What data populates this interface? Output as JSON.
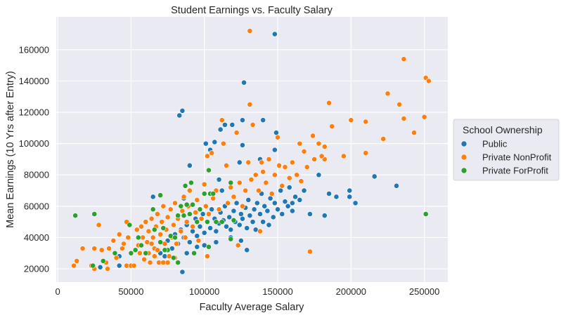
{
  "chart_data": {
    "type": "scatter",
    "title": "Student Earnings vs. Faculty Salary",
    "xlabel": "Faculty Average Salary",
    "ylabel": "Mean Earnings (10 Yrs after Entry)",
    "xlim": [
      -1000,
      266000
    ],
    "ylim": [
      11500,
      181000
    ],
    "xticks": [
      0,
      50000,
      100000,
      150000,
      200000,
      250000
    ],
    "yticks": [
      20000,
      40000,
      60000,
      80000,
      100000,
      120000,
      140000,
      160000
    ],
    "grid": true,
    "legend": {
      "title": "School Ownership",
      "placement": "right-outside"
    },
    "series": [
      {
        "name": "Public",
        "color": "#1f77b4",
        "points": [
          [
            148000,
            170000
          ],
          [
            127000,
            139000
          ],
          [
            85000,
            121000
          ],
          [
            83000,
            118000
          ],
          [
            140000,
            115000
          ],
          [
            126000,
            115000
          ],
          [
            111000,
            109000
          ],
          [
            114000,
            112000
          ],
          [
            119000,
            112000
          ],
          [
            101000,
            100000
          ],
          [
            107000,
            101000
          ],
          [
            104000,
            96000
          ],
          [
            126000,
            99000
          ],
          [
            149000,
            107000
          ],
          [
            148000,
            96000
          ],
          [
            90000,
            86000
          ],
          [
            124000,
            88000
          ],
          [
            138000,
            90000
          ],
          [
            85000,
            18000
          ],
          [
            129000,
            32000
          ],
          [
            203000,
            62000
          ],
          [
            216000,
            79000
          ],
          [
            231000,
            73000
          ],
          [
            199000,
            70000
          ],
          [
            199000,
            66000
          ],
          [
            190000,
            66000
          ],
          [
            185000,
            68000
          ],
          [
            182000,
            54000
          ],
          [
            178000,
            80000
          ],
          [
            172000,
            55000
          ],
          [
            160000,
            62000
          ],
          [
            75000,
            38000
          ],
          [
            78000,
            33000
          ],
          [
            80000,
            42000
          ],
          [
            82000,
            36000
          ],
          [
            84000,
            45000
          ],
          [
            86000,
            40000
          ],
          [
            88000,
            48000
          ],
          [
            90000,
            37000
          ],
          [
            92000,
            44000
          ],
          [
            94000,
            52000
          ],
          [
            95000,
            41000
          ],
          [
            97000,
            47000
          ],
          [
            99000,
            55000
          ],
          [
            100000,
            43000
          ],
          [
            102000,
            50000
          ],
          [
            104000,
            46000
          ],
          [
            105000,
            58000
          ],
          [
            107000,
            52000
          ],
          [
            108000,
            44000
          ],
          [
            110000,
            49000
          ],
          [
            111000,
            56000
          ],
          [
            113000,
            51000
          ],
          [
            114000,
            60000
          ],
          [
            115000,
            47000
          ],
          [
            117000,
            53000
          ],
          [
            118000,
            45000
          ],
          [
            120000,
            57000
          ],
          [
            121000,
            50000
          ],
          [
            122000,
            62000
          ],
          [
            124000,
            48000
          ],
          [
            125000,
            55000
          ],
          [
            126000,
            52000
          ],
          [
            128000,
            59000
          ],
          [
            129000,
            46000
          ],
          [
            130000,
            64000
          ],
          [
            131000,
            54000
          ],
          [
            133000,
            50000
          ],
          [
            134000,
            58000
          ],
          [
            135000,
            45000
          ],
          [
            136000,
            62000
          ],
          [
            138000,
            55000
          ],
          [
            139000,
            68000
          ],
          [
            140000,
            50000
          ],
          [
            141000,
            60000
          ],
          [
            143000,
            57000
          ],
          [
            144000,
            48000
          ],
          [
            145000,
            65000
          ],
          [
            147000,
            53000
          ],
          [
            148000,
            62000
          ],
          [
            150000,
            58000
          ],
          [
            152000,
            70000
          ],
          [
            153000,
            55000
          ],
          [
            155000,
            63000
          ],
          [
            157000,
            60000
          ],
          [
            158000,
            72000
          ],
          [
            160000,
            57000
          ],
          [
            162000,
            66000
          ],
          [
            165000,
            64000
          ],
          [
            168000,
            70000
          ],
          [
            70000,
            30000
          ],
          [
            73000,
            28000
          ],
          [
            65000,
            66000
          ],
          [
            42000,
            28000
          ],
          [
            42000,
            22000
          ],
          [
            29000,
            21000
          ],
          [
            95000,
            34000
          ],
          [
            100000,
            35000
          ],
          [
            108000,
            37000
          ],
          [
            118000,
            40000
          ],
          [
            125000,
            38000
          ],
          [
            88000,
            30000
          ],
          [
            86000,
            65000
          ],
          [
            110000,
            77000
          ],
          [
            112000,
            70000
          ]
        ]
      },
      {
        "name": "Private NonProfit",
        "color": "#ff7f0e",
        "points": [
          [
            131000,
            172000
          ],
          [
            236000,
            154000
          ],
          [
            251000,
            142000
          ],
          [
            253000,
            140000
          ],
          [
            225000,
            132000
          ],
          [
            185000,
            126000
          ],
          [
            233000,
            125000
          ],
          [
            131000,
            125000
          ],
          [
            210000,
            114000
          ],
          [
            236000,
            116000
          ],
          [
            250000,
            117000
          ],
          [
            200000,
            115000
          ],
          [
            243000,
            107000
          ],
          [
            222000,
            103000
          ],
          [
            174000,
            105000
          ],
          [
            187000,
            111000
          ],
          [
            165000,
            100000
          ],
          [
            182000,
            98000
          ],
          [
            195000,
            92000
          ],
          [
            210000,
            94000
          ],
          [
            182000,
            90000
          ],
          [
            172000,
            31000
          ],
          [
            102000,
            28000
          ],
          [
            11000,
            22000
          ],
          [
            13000,
            25000
          ],
          [
            17000,
            33000
          ],
          [
            25000,
            33000
          ],
          [
            28000,
            48000
          ],
          [
            34000,
            20000
          ],
          [
            47000,
            50000
          ],
          [
            25000,
            20000
          ],
          [
            23000,
            22000
          ],
          [
            30000,
            32000
          ],
          [
            33000,
            24000
          ],
          [
            35000,
            33000
          ],
          [
            38000,
            38000
          ],
          [
            40000,
            27000
          ],
          [
            42000,
            42000
          ],
          [
            44000,
            33000
          ],
          [
            45000,
            36000
          ],
          [
            47000,
            22000
          ],
          [
            48000,
            40000
          ],
          [
            50000,
            22000
          ],
          [
            52000,
            22000
          ],
          [
            54000,
            45000
          ],
          [
            55000,
            35000
          ],
          [
            56000,
            30000
          ],
          [
            57000,
            47000
          ],
          [
            58000,
            40000
          ],
          [
            59000,
            26000
          ],
          [
            60000,
            50000
          ],
          [
            61000,
            37000
          ],
          [
            62000,
            44000
          ],
          [
            63000,
            24000
          ],
          [
            64000,
            52000
          ],
          [
            65000,
            40000
          ],
          [
            66000,
            33000
          ],
          [
            67000,
            47000
          ],
          [
            68000,
            55000
          ],
          [
            69000,
            24000
          ],
          [
            70000,
            42000
          ],
          [
            71000,
            50000
          ],
          [
            72000,
            60000
          ],
          [
            73000,
            36000
          ],
          [
            74000,
            45000
          ],
          [
            75000,
            53000
          ],
          [
            76000,
            28000
          ],
          [
            77000,
            58000
          ],
          [
            78000,
            40000
          ],
          [
            79000,
            48000
          ],
          [
            80000,
            62000
          ],
          [
            81000,
            36000
          ],
          [
            82000,
            52000
          ],
          [
            84000,
            44000
          ],
          [
            85000,
            57000
          ],
          [
            86000,
            66000
          ],
          [
            87000,
            40000
          ],
          [
            88000,
            50000
          ],
          [
            89000,
            60000
          ],
          [
            90000,
            70000
          ],
          [
            92000,
            47000
          ],
          [
            94000,
            56000
          ],
          [
            95000,
            64000
          ],
          [
            96000,
            38000
          ],
          [
            98000,
            52000
          ],
          [
            100000,
            74000
          ],
          [
            101000,
            60000
          ],
          [
            102000,
            92000
          ],
          [
            103000,
            55000
          ],
          [
            105000,
            94000
          ],
          [
            106000,
            65000
          ],
          [
            108000,
            70000
          ],
          [
            110000,
            58000
          ],
          [
            112000,
            115000
          ],
          [
            113000,
            100000
          ],
          [
            115000,
            86000
          ],
          [
            116000,
            62000
          ],
          [
            118000,
            72000
          ],
          [
            120000,
            66000
          ],
          [
            122000,
            107000
          ],
          [
            123000,
            35000
          ],
          [
            124000,
            75000
          ],
          [
            126000,
            60000
          ],
          [
            128000,
            70000
          ],
          [
            130000,
            88000
          ],
          [
            132000,
            77000
          ],
          [
            133000,
            112000
          ],
          [
            135000,
            80000
          ],
          [
            137000,
            70000
          ],
          [
            138000,
            44000
          ],
          [
            139000,
            88000
          ],
          [
            140000,
            82000
          ],
          [
            142000,
            75000
          ],
          [
            144000,
            90000
          ],
          [
            146000,
            68000
          ],
          [
            148000,
            80000
          ],
          [
            150000,
            104000
          ],
          [
            151000,
            86000
          ],
          [
            153000,
            73000
          ],
          [
            155000,
            85000
          ],
          [
            158000,
            78000
          ],
          [
            160000,
            88000
          ],
          [
            163000,
            80000
          ],
          [
            166000,
            76000
          ],
          [
            168000,
            95000
          ],
          [
            170000,
            85000
          ],
          [
            175000,
            90000
          ],
          [
            178000,
            100000
          ],
          [
            180000,
            92000
          ],
          [
            62000,
            30000
          ],
          [
            64000,
            36000
          ],
          [
            66000,
            28000
          ],
          [
            68000,
            32000
          ],
          [
            75000,
            24000
          ],
          [
            80000,
            27000
          ],
          [
            72000,
            24000
          ]
        ]
      },
      {
        "name": "Private ForProfit",
        "color": "#2ca02c",
        "points": [
          [
            12000,
            54000
          ],
          [
            25000,
            55000
          ],
          [
            251000,
            55000
          ],
          [
            103000,
            83000
          ],
          [
            91000,
            75000
          ],
          [
            87000,
            73000
          ],
          [
            70000,
            67000
          ],
          [
            118000,
            75000
          ],
          [
            82000,
            24000
          ],
          [
            39000,
            30000
          ],
          [
            50000,
            30000
          ],
          [
            49000,
            48000
          ],
          [
            65000,
            58000
          ],
          [
            24000,
            22000
          ],
          [
            31000,
            25000
          ],
          [
            55000,
            40000
          ],
          [
            57000,
            35000
          ],
          [
            60000,
            30000
          ],
          [
            66000,
            45000
          ],
          [
            70000,
            37000
          ],
          [
            72000,
            46000
          ],
          [
            75000,
            32000
          ],
          [
            77000,
            41000
          ],
          [
            80000,
            40000
          ],
          [
            82000,
            54000
          ],
          [
            84000,
            60000
          ],
          [
            86000,
            54000
          ],
          [
            88000,
            61000
          ],
          [
            90000,
            55000
          ],
          [
            92000,
            61000
          ],
          [
            95000,
            50000
          ],
          [
            97000,
            58000
          ],
          [
            100000,
            68000
          ],
          [
            102000,
            50000
          ],
          [
            104000,
            68000
          ],
          [
            106000,
            68000
          ],
          [
            108000,
            50000
          ],
          [
            112000,
            50000
          ],
          [
            118000,
            39000
          ],
          [
            120000,
            51000
          ],
          [
            93000,
            30000
          ],
          [
            73000,
            32000
          ],
          [
            79000,
            27000
          ],
          [
            53000,
            32000
          ],
          [
            103000,
            34000
          ]
        ]
      }
    ]
  }
}
